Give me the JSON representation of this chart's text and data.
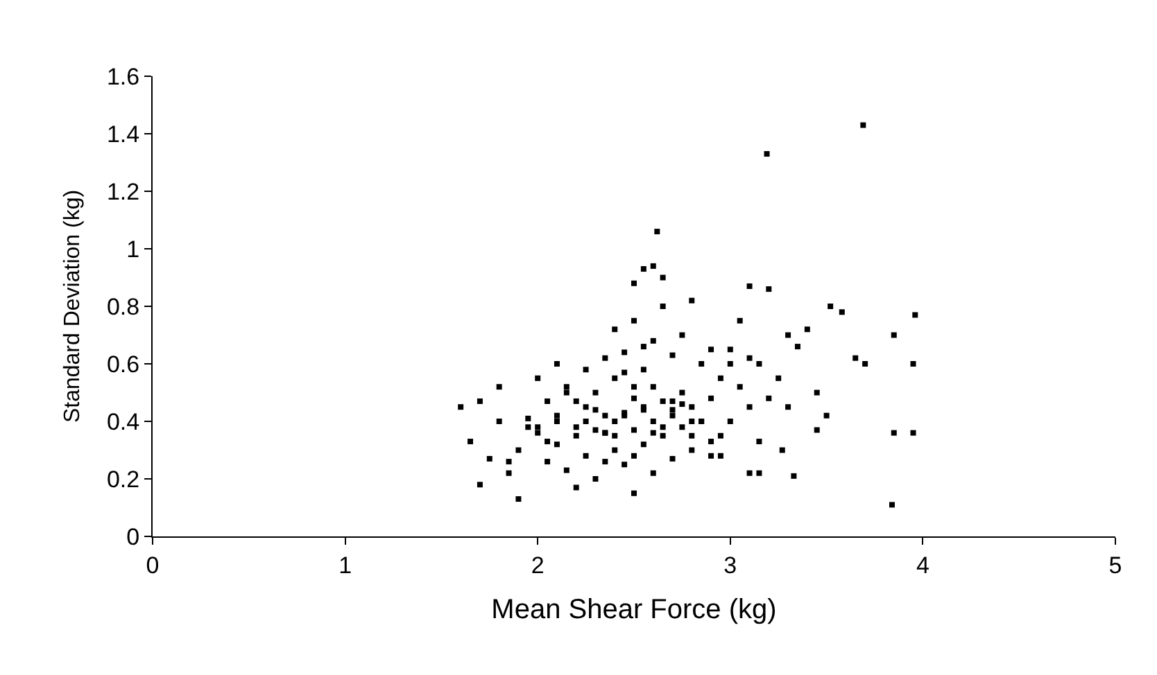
{
  "chart_data": {
    "type": "scatter",
    "xlabel": "Mean Shear Force (kg)",
    "ylabel": "Standard Deviation (kg)",
    "xlim": [
      0,
      5
    ],
    "xticks": [
      0,
      1,
      2,
      3,
      4,
      5
    ],
    "ylim": [
      0,
      1.6
    ],
    "yticks": [
      0,
      0.2,
      0.4,
      0.6,
      0.8,
      1,
      1.2,
      1.4,
      1.6
    ],
    "marker": "square",
    "series": [
      {
        "color": "#000000",
        "x": [
          3.69,
          3.19,
          2.62,
          3.84,
          3.96,
          3.95,
          3.95,
          3.85,
          3.85,
          3.52,
          3.58,
          3.1,
          3.2,
          2.55,
          2.6,
          2.65,
          2.5,
          1.6,
          1.65,
          1.7,
          1.7,
          1.9,
          2.5,
          3.33,
          3.1,
          3.15,
          3.0,
          3.7,
          3.65,
          3.3,
          3.4,
          3.45,
          3.45,
          3.5,
          3.27,
          3.3,
          3.35,
          1.75,
          1.8,
          1.85,
          1.9,
          1.95,
          2.0,
          2.0,
          2.05,
          2.05,
          2.1,
          2.1,
          2.1,
          2.15,
          2.15,
          2.2,
          2.2,
          2.2,
          2.25,
          2.25,
          2.25,
          2.3,
          2.3,
          2.3,
          2.35,
          2.35,
          2.35,
          2.4,
          2.4,
          2.4,
          2.4,
          2.45,
          2.45,
          2.45,
          2.5,
          2.5,
          2.5,
          2.5,
          2.55,
          2.55,
          2.55,
          2.6,
          2.6,
          2.6,
          2.6,
          2.65,
          2.65,
          2.65,
          2.7,
          2.7,
          2.7,
          2.75,
          2.75,
          2.75,
          2.8,
          2.8,
          2.8,
          2.85,
          2.85,
          2.9,
          2.9,
          2.9,
          2.95,
          2.95,
          3.0,
          3.0,
          3.05,
          3.05,
          3.1,
          3.1,
          3.15,
          3.15,
          3.2,
          3.25,
          2.0,
          2.1,
          2.2,
          2.3,
          2.4,
          2.5,
          2.6,
          2.7,
          2.8,
          1.95,
          2.05,
          2.15,
          2.25,
          2.35,
          2.45,
          2.55,
          2.65,
          2.75,
          2.85,
          2.95,
          1.8,
          1.85,
          2.7,
          2.8,
          2.9,
          2.35,
          2.45,
          2.55
        ],
        "values": [
          1.43,
          1.33,
          1.06,
          0.11,
          0.77,
          0.6,
          0.36,
          0.36,
          0.7,
          0.8,
          0.78,
          0.87,
          0.86,
          0.93,
          0.94,
          0.9,
          0.88,
          0.45,
          0.33,
          0.47,
          0.18,
          0.13,
          0.15,
          0.21,
          0.22,
          0.22,
          0.6,
          0.6,
          0.62,
          0.7,
          0.72,
          0.5,
          0.37,
          0.42,
          0.3,
          0.45,
          0.66,
          0.27,
          0.4,
          0.22,
          0.3,
          0.41,
          0.36,
          0.55,
          0.26,
          0.47,
          0.32,
          0.4,
          0.6,
          0.23,
          0.52,
          0.17,
          0.35,
          0.47,
          0.28,
          0.4,
          0.58,
          0.2,
          0.37,
          0.5,
          0.26,
          0.42,
          0.62,
          0.3,
          0.4,
          0.55,
          0.72,
          0.25,
          0.43,
          0.64,
          0.28,
          0.37,
          0.52,
          0.75,
          0.32,
          0.45,
          0.58,
          0.22,
          0.4,
          0.52,
          0.68,
          0.35,
          0.47,
          0.8,
          0.27,
          0.44,
          0.63,
          0.38,
          0.5,
          0.7,
          0.3,
          0.45,
          0.82,
          0.4,
          0.6,
          0.28,
          0.48,
          0.65,
          0.35,
          0.55,
          0.4,
          0.65,
          0.52,
          0.75,
          0.45,
          0.62,
          0.33,
          0.6,
          0.48,
          0.55,
          0.38,
          0.42,
          0.38,
          0.44,
          0.35,
          0.48,
          0.36,
          0.42,
          0.4,
          0.38,
          0.33,
          0.5,
          0.45,
          0.36,
          0.42,
          0.44,
          0.38,
          0.46,
          0.4,
          0.28,
          0.52,
          0.26,
          0.47,
          0.35,
          0.33,
          0.36,
          0.57,
          0.66
        ]
      }
    ]
  }
}
